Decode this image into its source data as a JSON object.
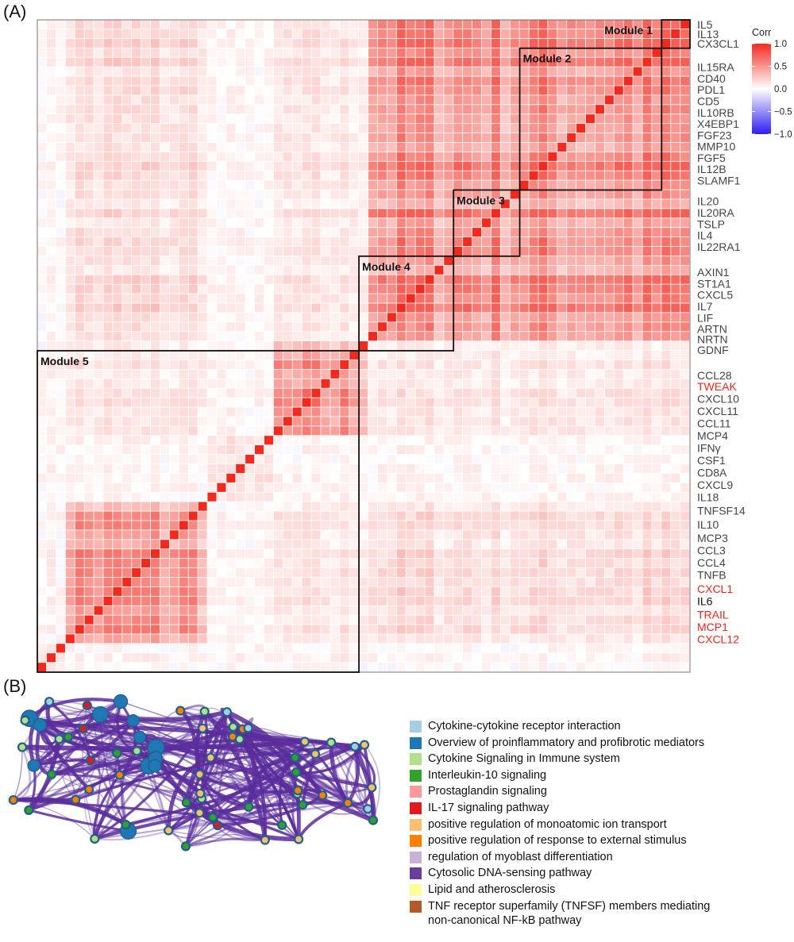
{
  "panel_a_label": "(A)",
  "panel_b_label": "(B)",
  "chart_data": {
    "type": "heatmap",
    "colorbar": {
      "title": "Corr",
      "ticks": [
        "1.0",
        "0.5",
        "0.0",
        "−0.5",
        "−1.0"
      ],
      "tick_values": [
        1.0,
        0.5,
        0.0,
        -0.5,
        -1.0
      ],
      "colors": {
        "low": "#2b1df2",
        "mid": "#ffffff",
        "high": "#f22a1e"
      }
    },
    "n_variables": 69,
    "modules": [
      {
        "name": "Module 1",
        "start": 0,
        "end": 2
      },
      {
        "name": "Module 2",
        "start": 3,
        "end": 17
      },
      {
        "name": "Module 3",
        "start": 18,
        "end": 24
      },
      {
        "name": "Module 4",
        "start": 25,
        "end": 34
      },
      {
        "name": "Module 5",
        "start": 35,
        "end": 68
      }
    ],
    "row_labels": [
      {
        "text": "IL5",
        "row": 0,
        "color": "#444444"
      },
      {
        "text": "IL13",
        "row": 1,
        "color": "#444444"
      },
      {
        "text": "CX3CL1",
        "row": 2,
        "color": "#444444"
      },
      {
        "text": "IL15RA",
        "row": 4.5,
        "color": "#444444"
      },
      {
        "text": "CD40",
        "row": 5.7,
        "color": "#444444"
      },
      {
        "text": "PDL1",
        "row": 6.9,
        "color": "#444444"
      },
      {
        "text": "CD5",
        "row": 8.1,
        "color": "#444444"
      },
      {
        "text": "IL10RB",
        "row": 9.3,
        "color": "#444444"
      },
      {
        "text": "X4EBP1",
        "row": 10.5,
        "color": "#444444"
      },
      {
        "text": "FGF23",
        "row": 11.7,
        "color": "#444444"
      },
      {
        "text": "MMP10",
        "row": 12.9,
        "color": "#444444"
      },
      {
        "text": "FGF5",
        "row": 14.1,
        "color": "#444444"
      },
      {
        "text": "IL12B",
        "row": 15.3,
        "color": "#444444"
      },
      {
        "text": "SLAMF1",
        "row": 16.5,
        "color": "#444444"
      },
      {
        "text": "IL20",
        "row": 18.7,
        "color": "#444444"
      },
      {
        "text": "IL20RA",
        "row": 19.9,
        "color": "#444444"
      },
      {
        "text": "TSLP",
        "row": 21.1,
        "color": "#444444"
      },
      {
        "text": "IL4",
        "row": 22.3,
        "color": "#444444"
      },
      {
        "text": "IL22RA1",
        "row": 23.5,
        "color": "#444444"
      },
      {
        "text": "AXIN1",
        "row": 26.2,
        "color": "#444444"
      },
      {
        "text": "ST1A1",
        "row": 27.4,
        "color": "#444444"
      },
      {
        "text": "CXCL5",
        "row": 28.6,
        "color": "#444444"
      },
      {
        "text": "IL7",
        "row": 29.8,
        "color": "#444444"
      },
      {
        "text": "LIF",
        "row": 31.0,
        "color": "#444444"
      },
      {
        "text": "ARTN",
        "row": 32.2,
        "color": "#444444"
      },
      {
        "text": "NRTN",
        "row": 33.3,
        "color": "#444444"
      },
      {
        "text": "GDNF",
        "row": 34.4,
        "color": "#444444"
      },
      {
        "text": "CCL28",
        "row": 37.1,
        "color": "#444444"
      },
      {
        "text": "TWEAK",
        "row": 38.3,
        "color": "#e8271f"
      },
      {
        "text": "CXCL10",
        "row": 39.6,
        "color": "#444444"
      },
      {
        "text": "CXCL11",
        "row": 40.9,
        "color": "#444444"
      },
      {
        "text": "CCL11",
        "row": 42.2,
        "color": "#444444"
      },
      {
        "text": "MCP4",
        "row": 43.5,
        "color": "#444444"
      },
      {
        "text": "IFNγ",
        "row": 44.8,
        "color": "#444444"
      },
      {
        "text": "CSF1",
        "row": 46.1,
        "color": "#444444"
      },
      {
        "text": "CD8A",
        "row": 47.4,
        "color": "#444444"
      },
      {
        "text": "CXCL9",
        "row": 48.7,
        "color": "#444444"
      },
      {
        "text": "IL18",
        "row": 50.0,
        "color": "#444444"
      },
      {
        "text": "TNFSF14",
        "row": 51.4,
        "color": "#444444"
      },
      {
        "text": "IL10",
        "row": 52.9,
        "color": "#444444"
      },
      {
        "text": "MCP3",
        "row": 54.3,
        "color": "#444444"
      },
      {
        "text": "CCL3",
        "row": 55.6,
        "color": "#444444"
      },
      {
        "text": "CCL4",
        "row": 56.9,
        "color": "#444444"
      },
      {
        "text": "TNFB",
        "row": 58.2,
        "color": "#444444"
      },
      {
        "text": "CXCL1",
        "row": 59.7,
        "color": "#e8271f"
      },
      {
        "text": "IL6",
        "row": 61.0,
        "color": "#111111"
      },
      {
        "text": "TRAIL",
        "row": 62.4,
        "color": "#e8271f"
      },
      {
        "text": "MCP1",
        "row": 63.7,
        "color": "#e8271f"
      },
      {
        "text": "CXCL12",
        "row": 65.0,
        "color": "#e8271f"
      }
    ]
  },
  "network": {
    "edge_color": "#5a2d9c",
    "node_border_color": "#1f5f8b"
  },
  "legend": {
    "items": [
      {
        "label": "Cytokine-cytokine receptor interaction",
        "color": "#a6cee3"
      },
      {
        "label": "Overview of proinflammatory and profibrotic mediators",
        "color": "#1f78b4"
      },
      {
        "label": "Cytokine Signaling in Immune system",
        "color": "#b2df8a"
      },
      {
        "label": "Interleukin-10 signaling",
        "color": "#33a02c"
      },
      {
        "label": "Prostaglandin signaling",
        "color": "#fb9a99"
      },
      {
        "label": "IL-17 signaling pathway",
        "color": "#e31a1c"
      },
      {
        "label": "positive regulation of monoatomic ion transport",
        "color": "#fdbf6f"
      },
      {
        "label": "positive regulation of response to external stimulus",
        "color": "#ff7f00"
      },
      {
        "label": "regulation of myoblast differentiation",
        "color": "#cab2d6"
      },
      {
        "label": "Cytosolic DNA-sensing pathway",
        "color": "#6a3d9a"
      },
      {
        "label": "Lipid and atherosclerosis",
        "color": "#ffff99"
      },
      {
        "label": "TNF receptor superfamily (TNFSF) members mediating non-canonical NF-kB pathway",
        "color": "#b15928"
      }
    ]
  }
}
